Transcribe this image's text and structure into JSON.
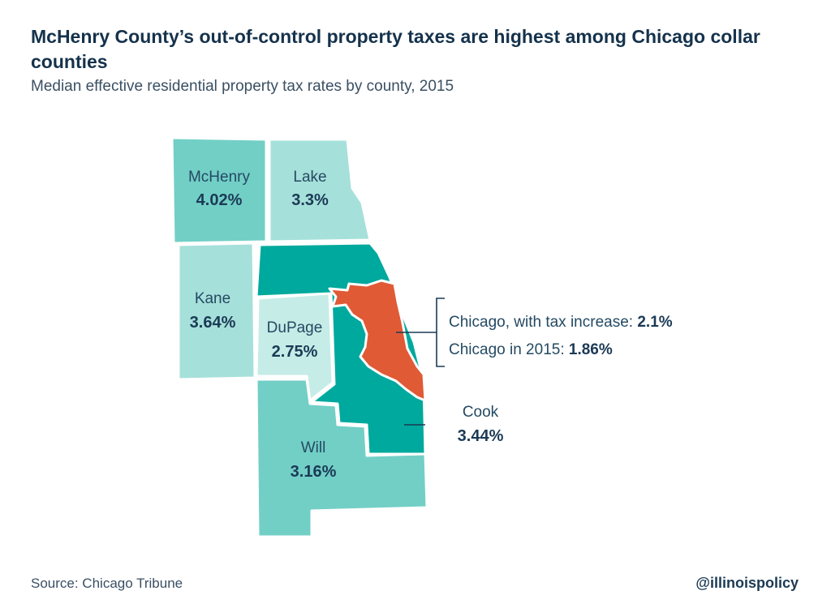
{
  "title": "McHenry County’s out-of-control property taxes are highest among Chicago collar counties",
  "subtitle": "Median effective residential property tax rates by county, 2015",
  "counties": {
    "mchenry": {
      "name": "McHenry",
      "value": "4.02%",
      "color": "#72cfc6"
    },
    "lake": {
      "name": "Lake",
      "value": "3.3%",
      "color": "#a6e0da"
    },
    "kane": {
      "name": "Kane",
      "value": "3.64%",
      "color": "#a6e0da"
    },
    "dupage": {
      "name": "DuPage",
      "value": "2.75%",
      "color": "#c6ece7"
    },
    "will": {
      "name": "Will",
      "value": "3.16%",
      "color": "#72cfc6"
    },
    "cook": {
      "name": "Cook",
      "value": "3.44%",
      "color": "#00a99d"
    }
  },
  "chicago": {
    "color": "#e05a36",
    "increase_label": "Chicago, with tax increase: ",
    "increase_value": "2.1%",
    "current_label": "Chicago in 2015: ",
    "current_value": "1.86%"
  },
  "footer": {
    "source": "Source: Chicago Tribune",
    "handle": "@illinoispolicy"
  }
}
